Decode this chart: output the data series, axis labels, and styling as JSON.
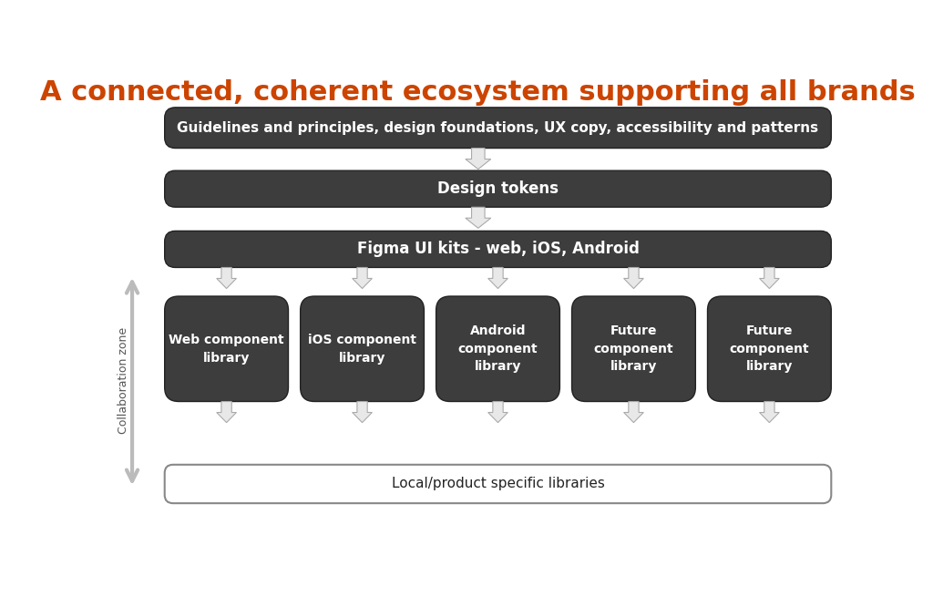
{
  "title": "A connected, coherent ecosystem supporting all brands",
  "title_color": "#cc4400",
  "title_fontsize": 22,
  "background_color": "#ffffff",
  "box_color": "#3d3d3d",
  "box_text_color": "#ffffff",
  "arrow_face_color": "#e8e8e8",
  "arrow_edge_color": "#aaaaaa",
  "collab_arrow_color": "#bbbbbb",
  "row1_text": "Guidelines and principles, design foundations, UX copy, accessibility and patterns",
  "row2_text": "Design tokens",
  "row3_text": "Figma UI kits - web, iOS, Android",
  "bottom_box_text": "Local/product specific libraries",
  "bottom_box_border": "#888888",
  "component_boxes": [
    "Web component\nlibrary",
    "iOS component\nlibrary",
    "Android\ncomponent\nlibrary",
    "Future\ncomponent\nlibrary",
    "Future\ncomponent\nlibrary"
  ],
  "collab_label": "Collaboration zone"
}
